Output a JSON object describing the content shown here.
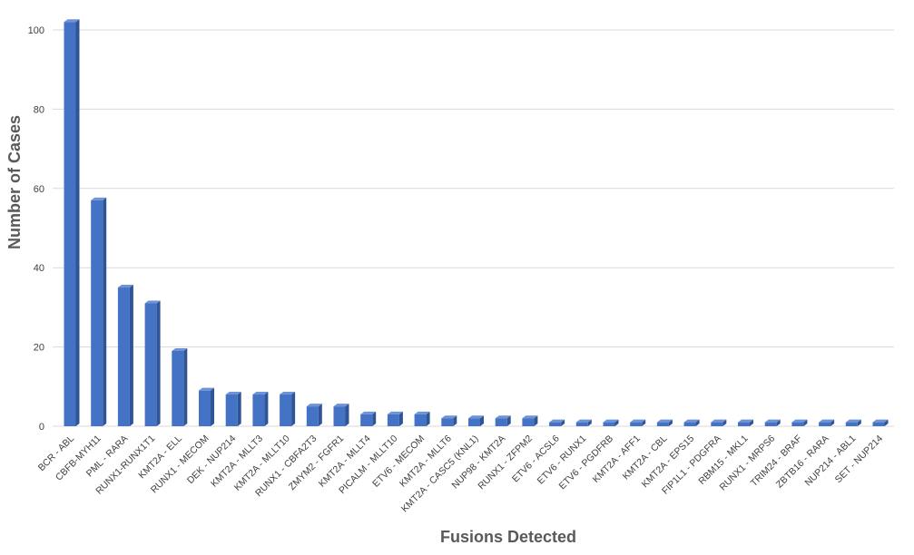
{
  "chart_data": {
    "type": "bar",
    "title": "",
    "xlabel": "Fusions Detected",
    "ylabel": "Number of Cases",
    "ylim": [
      0,
      100
    ],
    "yticks": [
      0,
      20,
      40,
      60,
      80,
      100
    ],
    "grid": true,
    "bar_color": "#4472c4",
    "categories": [
      "BCR - ABL",
      "CBFB-MYH11",
      "PML - RARA",
      "RUNX1-RUNX1T1",
      "KMT2A - ELL",
      "RUNX1 - MECOM",
      "DEK - NUP214",
      "KMT2A - MLLT3",
      "KMT2A - MLLT10",
      "RUNX1 - CBFA2T3",
      "ZMYM2 - FGFR1",
      "KMT2A - MLLT4",
      "PICALM - MLLT10",
      "ETV6 - MECOM",
      "KMT2A - MLLT6",
      "KMT2A - CASC5 (KNL1)",
      "NUP98 - KMT2A",
      "RUNX1 - ZFPM2",
      "ETV6 - ACSL6",
      "ETV6 - RUNX1",
      "ETV6 - PGDFRB",
      "KMT2A - AFF1",
      "KMT2A - CBL",
      "KMT2A - EPS15",
      "FIP1L1 - PDGFRA",
      "RBM15 - MKL1",
      "RUNX1 - MRPS6",
      "TRIM24 - BRAF",
      "ZBTB16 - RARA",
      "NUP214 - ABL1",
      "SET - NUP214"
    ],
    "values": [
      102,
      57,
      35,
      31,
      19,
      9,
      8,
      8,
      8,
      5,
      5,
      3,
      3,
      3,
      2,
      2,
      2,
      2,
      1,
      1,
      1,
      1,
      1,
      1,
      1,
      1,
      1,
      1,
      1,
      1,
      1
    ]
  }
}
